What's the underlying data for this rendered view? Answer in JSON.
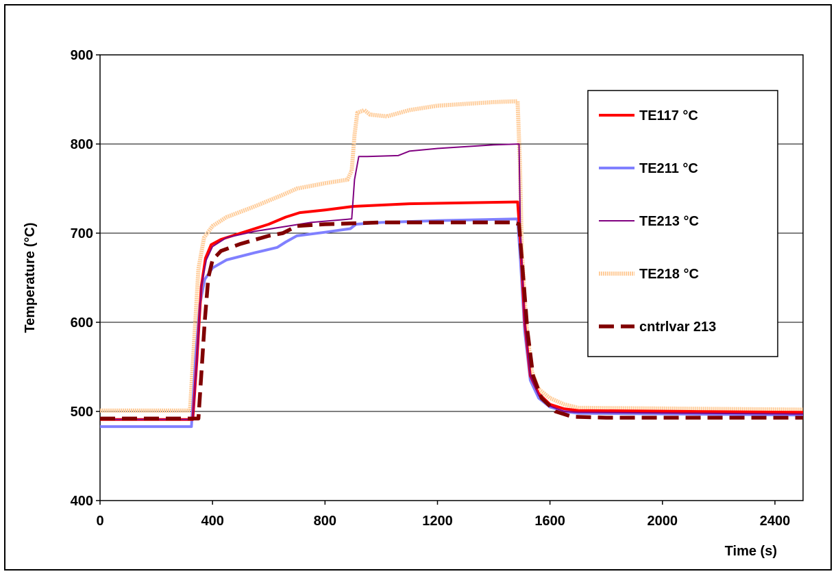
{
  "chart_data": {
    "type": "line",
    "title": "",
    "xlabel": "Time (s)",
    "ylabel": "Temperature (°C)",
    "xlim": [
      0,
      2500
    ],
    "ylim": [
      400,
      900
    ],
    "x_ticks": [
      0,
      400,
      800,
      1200,
      1600,
      2000,
      2400
    ],
    "y_ticks": [
      400,
      500,
      600,
      700,
      800,
      900
    ],
    "x_tick_labels": [
      "0",
      "400",
      "800",
      "1200",
      "1600",
      "2000",
      "2400"
    ],
    "y_tick_labels": [
      "400",
      "500",
      "600",
      "700",
      "800",
      "900"
    ],
    "grid": "horizontal",
    "legend_position": "right",
    "series": [
      {
        "name": "TE117 °C",
        "color": "#ff0000",
        "style": "solid-thick",
        "points": [
          [
            0,
            491
          ],
          [
            330,
            491
          ],
          [
            345,
            560
          ],
          [
            360,
            640
          ],
          [
            375,
            672
          ],
          [
            395,
            687
          ],
          [
            430,
            693
          ],
          [
            500,
            700
          ],
          [
            600,
            710
          ],
          [
            660,
            718
          ],
          [
            710,
            723
          ],
          [
            800,
            726
          ],
          [
            900,
            730
          ],
          [
            1100,
            733
          ],
          [
            1300,
            734
          ],
          [
            1485,
            735
          ],
          [
            1495,
            690
          ],
          [
            1510,
            600
          ],
          [
            1530,
            540
          ],
          [
            1560,
            520
          ],
          [
            1600,
            508
          ],
          [
            1650,
            503
          ],
          [
            1700,
            501
          ],
          [
            2100,
            500
          ],
          [
            2500,
            499
          ]
        ]
      },
      {
        "name": "TE211 °C",
        "color": "#8080ff",
        "style": "solid-thick",
        "points": [
          [
            0,
            483
          ],
          [
            325,
            483
          ],
          [
            340,
            560
          ],
          [
            355,
            620
          ],
          [
            372,
            648
          ],
          [
            400,
            661
          ],
          [
            450,
            670
          ],
          [
            550,
            678
          ],
          [
            630,
            684
          ],
          [
            660,
            690
          ],
          [
            700,
            697
          ],
          [
            800,
            701
          ],
          [
            890,
            705
          ],
          [
            910,
            710
          ],
          [
            1000,
            712
          ],
          [
            1200,
            714
          ],
          [
            1485,
            716
          ],
          [
            1495,
            670
          ],
          [
            1510,
            590
          ],
          [
            1530,
            535
          ],
          [
            1560,
            515
          ],
          [
            1600,
            505
          ],
          [
            1650,
            500
          ],
          [
            1700,
            498
          ],
          [
            2100,
            497
          ],
          [
            2500,
            496
          ]
        ]
      },
      {
        "name": "TE213 °C",
        "color": "#800080",
        "style": "solid-thin",
        "points": [
          [
            0,
            491
          ],
          [
            330,
            491
          ],
          [
            345,
            560
          ],
          [
            360,
            640
          ],
          [
            378,
            670
          ],
          [
            400,
            685
          ],
          [
            450,
            695
          ],
          [
            550,
            702
          ],
          [
            650,
            707
          ],
          [
            750,
            712
          ],
          [
            895,
            716
          ],
          [
            905,
            760
          ],
          [
            920,
            786
          ],
          [
            950,
            786
          ],
          [
            1060,
            787
          ],
          [
            1100,
            792
          ],
          [
            1200,
            795
          ],
          [
            1300,
            797
          ],
          [
            1400,
            799
          ],
          [
            1490,
            800
          ],
          [
            1495,
            700
          ],
          [
            1510,
            600
          ],
          [
            1530,
            540
          ],
          [
            1560,
            518
          ],
          [
            1600,
            506
          ],
          [
            1650,
            500
          ],
          [
            1700,
            499
          ],
          [
            2100,
            498
          ],
          [
            2500,
            497
          ]
        ]
      },
      {
        "name": "TE218 °C",
        "color": "#ffcc99",
        "style": "dotted-thick",
        "points": [
          [
            0,
            501
          ],
          [
            320,
            501
          ],
          [
            335,
            580
          ],
          [
            350,
            660
          ],
          [
            370,
            695
          ],
          [
            400,
            708
          ],
          [
            450,
            718
          ],
          [
            550,
            730
          ],
          [
            650,
            743
          ],
          [
            700,
            750
          ],
          [
            800,
            756
          ],
          [
            880,
            760
          ],
          [
            895,
            770
          ],
          [
            905,
            810
          ],
          [
            915,
            835
          ],
          [
            940,
            838
          ],
          [
            960,
            833
          ],
          [
            1020,
            831
          ],
          [
            1100,
            838
          ],
          [
            1200,
            843
          ],
          [
            1300,
            845
          ],
          [
            1400,
            847
          ],
          [
            1485,
            848
          ],
          [
            1493,
            780
          ],
          [
            1500,
            680
          ],
          [
            1515,
            600
          ],
          [
            1535,
            545
          ],
          [
            1560,
            525
          ],
          [
            1600,
            515
          ],
          [
            1650,
            508
          ],
          [
            1700,
            504
          ],
          [
            2100,
            503
          ],
          [
            2500,
            502
          ]
        ]
      },
      {
        "name": "cntrlvar  213",
        "color": "#800000",
        "style": "dashed-thick",
        "points": [
          [
            0,
            492
          ],
          [
            350,
            492
          ],
          [
            360,
            540
          ],
          [
            372,
            600
          ],
          [
            385,
            650
          ],
          [
            400,
            670
          ],
          [
            430,
            680
          ],
          [
            500,
            688
          ],
          [
            600,
            697
          ],
          [
            650,
            700
          ],
          [
            700,
            708
          ],
          [
            800,
            710
          ],
          [
            1000,
            712
          ],
          [
            1200,
            712
          ],
          [
            1470,
            712
          ],
          [
            1490,
            710
          ],
          [
            1505,
            650
          ],
          [
            1520,
            590
          ],
          [
            1540,
            540
          ],
          [
            1570,
            515
          ],
          [
            1620,
            500
          ],
          [
            1680,
            494
          ],
          [
            1800,
            493
          ],
          [
            2100,
            493
          ],
          [
            2500,
            493
          ]
        ]
      }
    ]
  }
}
